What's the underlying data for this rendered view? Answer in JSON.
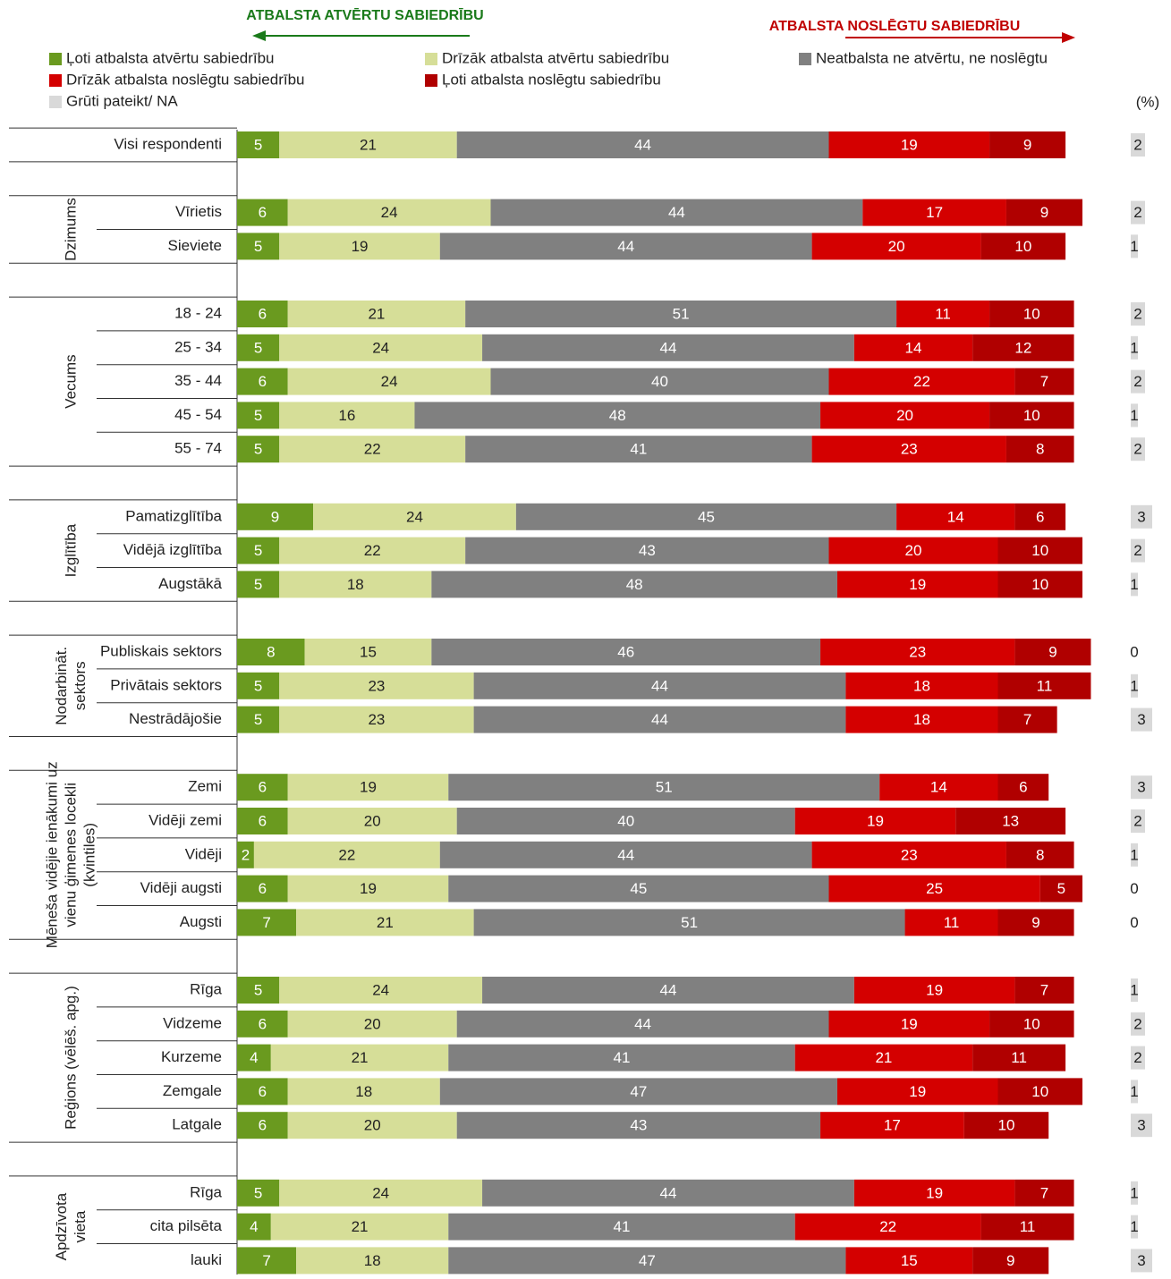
{
  "chart_data": {
    "type": "stacked-bar-horizontal",
    "annotations": [
      "ATBALSTA ATVĒRTU SABIEDRĪBU",
      "ATBALSTA NOSLĒGTU SABIEDRĪBU"
    ],
    "unit_label": "(%)",
    "xlim": [
      0,
      100
    ],
    "groups": [
      {
        "label": null,
        "categories": [
          "Visi respondenti"
        ]
      },
      {
        "label": [
          "Dzimums"
        ],
        "categories": [
          "Vīrietis",
          "Sieviete"
        ]
      },
      {
        "label": [
          "Vecums"
        ],
        "categories": [
          "18 - 24",
          "25 - 34",
          "35 - 44",
          "45 - 54",
          "55 - 74"
        ]
      },
      {
        "label": [
          "Izglītība"
        ],
        "categories": [
          "Pamatizglītība",
          "Vidējā izglītība",
          "Augstākā"
        ]
      },
      {
        "label": [
          "Nodarbināt.",
          "sektors"
        ],
        "categories": [
          "Publiskais sektors",
          "Privātais sektors",
          "Nestrādājošie"
        ]
      },
      {
        "label": [
          "Mēneša vidējie ienākumi uz",
          "vienu ģimenes locekli",
          "(kvintiles)"
        ],
        "categories": [
          "Zemi",
          "Vidēji zemi",
          "Vidēji",
          "Vidēji augsti",
          "Augsti"
        ]
      },
      {
        "label": [
          "Reģions (vēlēš. apg.)"
        ],
        "categories": [
          "Rīga",
          "Vidzeme",
          "Kurzeme",
          "Zemgale",
          "Latgale"
        ]
      },
      {
        "label": [
          "Apdzīvota",
          "vieta"
        ],
        "categories": [
          "Rīga",
          "cita pilsēta",
          "lauki"
        ]
      }
    ],
    "series": [
      {
        "name": "Ļoti atbalsta atvērtu sabiedrību",
        "color": "#6a9a1f",
        "text_color": "#ffffff",
        "values": [
          5,
          6,
          5,
          6,
          5,
          6,
          5,
          5,
          9,
          5,
          5,
          8,
          5,
          5,
          6,
          6,
          2,
          6,
          7,
          5,
          6,
          4,
          6,
          6,
          5,
          4,
          7
        ]
      },
      {
        "name": "Drīzāk atbalsta atvērtu sabiedrību",
        "color": "#d6de98",
        "text_color": "#222222",
        "values": [
          21,
          24,
          19,
          21,
          24,
          24,
          16,
          22,
          24,
          22,
          18,
          15,
          23,
          23,
          19,
          20,
          22,
          19,
          21,
          24,
          20,
          21,
          18,
          20,
          24,
          21,
          18
        ]
      },
      {
        "name": "Neatbalsta ne atvērtu, ne noslēgtu",
        "color": "#808080",
        "text_color": "#ffffff",
        "values": [
          44,
          44,
          44,
          51,
          44,
          40,
          48,
          41,
          45,
          43,
          48,
          46,
          44,
          44,
          51,
          40,
          44,
          45,
          51,
          44,
          44,
          41,
          47,
          43,
          44,
          41,
          47
        ]
      },
      {
        "name": "Drīzāk atbalsta noslēgtu sabiedrību",
        "color": "#d40000",
        "text_color": "#ffffff",
        "values": [
          19,
          17,
          20,
          11,
          14,
          22,
          20,
          23,
          14,
          20,
          19,
          23,
          18,
          18,
          14,
          19,
          23,
          25,
          11,
          19,
          19,
          21,
          19,
          17,
          19,
          22,
          15
        ]
      },
      {
        "name": "Ļoti atbalsta noslēgtu sabiedrību",
        "color": "#b00000",
        "text_color": "#ffffff",
        "values": [
          9,
          9,
          10,
          10,
          12,
          7,
          10,
          8,
          6,
          10,
          10,
          9,
          11,
          7,
          6,
          13,
          8,
          5,
          9,
          7,
          10,
          11,
          10,
          10,
          7,
          11,
          9
        ]
      },
      {
        "name": "Grūti pateikt/ NA",
        "color": "#d9d9d9",
        "text_color": "#222222",
        "values": [
          2,
          2,
          1,
          2,
          1,
          2,
          1,
          2,
          3,
          2,
          1,
          0,
          1,
          3,
          3,
          2,
          1,
          0,
          0,
          1,
          2,
          2,
          1,
          3,
          1,
          1,
          3
        ]
      }
    ]
  }
}
